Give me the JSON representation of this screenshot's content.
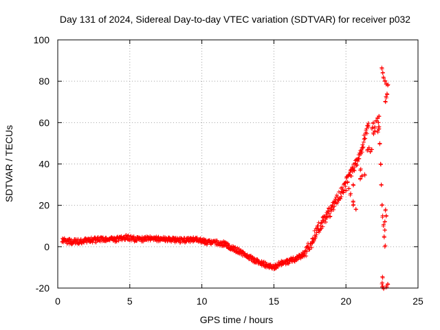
{
  "chart_data": {
    "type": "scatter",
    "title": "Day 131 of 2024, Sidereal Day-to-day VTEC variation (SDTVAR) for receiver p032",
    "xlabel": "GPS time / hours",
    "ylabel": "SDTVAR / TECUs",
    "xlim": [
      0,
      25
    ],
    "ylim": [
      -20,
      100
    ],
    "xticks": [
      0,
      5,
      10,
      15,
      20,
      25
    ],
    "yticks": [
      -20,
      0,
      20,
      40,
      60,
      80,
      100
    ],
    "grid": true,
    "marker": "+",
    "color": "#ff0000",
    "series": [
      {
        "name": "SDTVAR",
        "trend": [
          [
            0.3,
            3
          ],
          [
            1.0,
            2.5
          ],
          [
            1.5,
            2.5
          ],
          [
            2.0,
            3
          ],
          [
            3.0,
            3.5
          ],
          [
            4.0,
            3.5
          ],
          [
            4.7,
            4.5
          ],
          [
            5.5,
            3.5
          ],
          [
            6.5,
            4
          ],
          [
            7.5,
            3.5
          ],
          [
            8.5,
            3
          ],
          [
            9.5,
            3.5
          ],
          [
            10.5,
            2
          ],
          [
            11.5,
            1.5
          ],
          [
            12.5,
            -2
          ],
          [
            13.5,
            -6
          ],
          [
            14.5,
            -9
          ],
          [
            15.0,
            -10
          ],
          [
            15.5,
            -8
          ],
          [
            16.5,
            -6
          ],
          [
            17.2,
            -3
          ],
          [
            17.6,
            2
          ],
          [
            18.0,
            8
          ],
          [
            18.5,
            13
          ],
          [
            19.0,
            18
          ],
          [
            19.5,
            24
          ],
          [
            20.0,
            31
          ],
          [
            20.5,
            38
          ],
          [
            21.0,
            45
          ],
          [
            21.4,
            55
          ],
          [
            21.6,
            62
          ]
        ],
        "clusters": [
          [
            [
              21.5,
              47
            ],
            [
              21.0,
              37
            ],
            [
              20.5,
              30
            ],
            [
              20.2,
              28
            ],
            [
              20.0,
              27
            ],
            [
              20.3,
              25
            ],
            [
              20.5,
              22
            ],
            [
              20.7,
              18
            ],
            [
              20.5,
              20
            ],
            [
              21.0,
              33
            ],
            [
              21.3,
              35
            ],
            [
              21.1,
              34
            ],
            [
              21.6,
              48
            ],
            [
              21.8,
              47
            ],
            [
              21.7,
              46
            ]
          ],
          [
            [
              21.8,
              57
            ],
            [
              21.9,
              55
            ],
            [
              22.0,
              58
            ],
            [
              22.1,
              61
            ],
            [
              21.9,
              60
            ],
            [
              22.2,
              56
            ],
            [
              22.3,
              57
            ],
            [
              22.0,
              56
            ]
          ],
          [
            [
              22.2,
              62
            ],
            [
              22.3,
              63
            ],
            [
              22.25,
              60
            ],
            [
              22.3,
              58
            ],
            [
              22.35,
              50
            ],
            [
              22.4,
              40
            ],
            [
              22.45,
              30
            ],
            [
              22.5,
              20
            ],
            [
              22.55,
              15
            ],
            [
              22.6,
              10
            ],
            [
              22.65,
              5
            ],
            [
              22.7,
              0
            ],
            [
              22.7,
              12
            ],
            [
              22.75,
              18
            ],
            [
              22.8,
              15
            ],
            [
              22.7,
              8
            ]
          ],
          [
            [
              22.5,
              86
            ],
            [
              22.55,
              84
            ],
            [
              22.6,
              82
            ],
            [
              22.7,
              80
            ],
            [
              22.8,
              79
            ],
            [
              22.9,
              78
            ],
            [
              22.8,
              72
            ],
            [
              22.85,
              74
            ],
            [
              22.75,
              70
            ]
          ],
          [
            [
              22.5,
              -18
            ],
            [
              22.55,
              -19
            ],
            [
              22.6,
              -20
            ],
            [
              22.8,
              -19
            ],
            [
              22.9,
              -18
            ],
            [
              22.55,
              -15
            ]
          ]
        ]
      }
    ]
  }
}
